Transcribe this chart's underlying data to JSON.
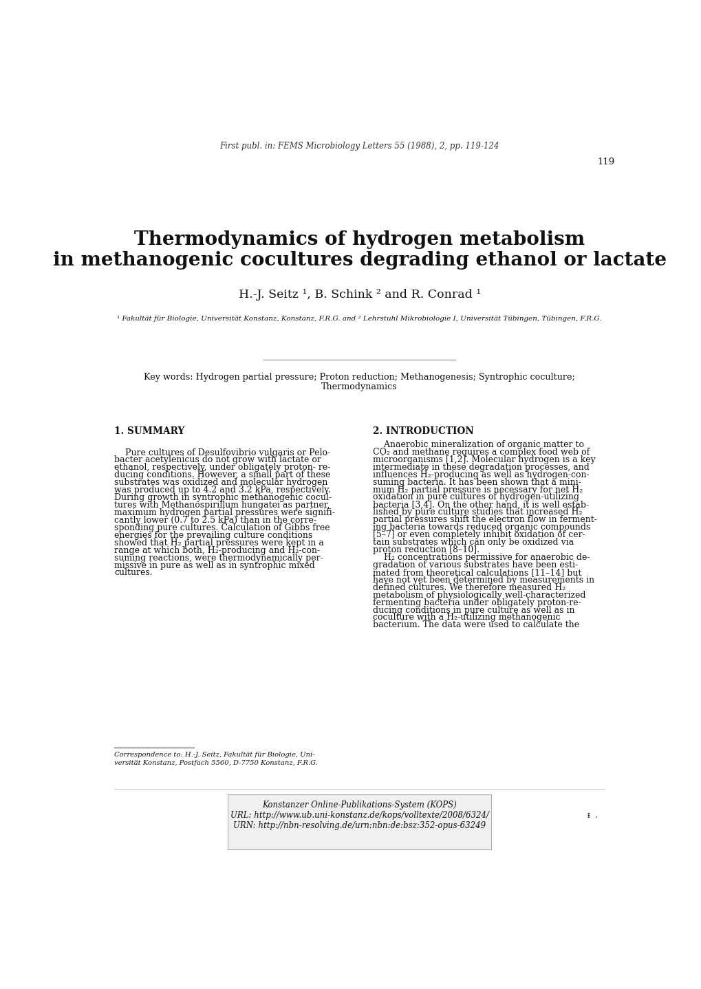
{
  "bg_color": "#ffffff",
  "header_italic": "First publ. in: FEMS Microbiology Letters 55 (1988), 2, pp. 119-124",
  "page_number": "119",
  "title_line1": "Thermodynamics of hydrogen metabolism",
  "title_line2": "in methanogenic cocultures degrading ethanol or lactate",
  "authors": "H.-J. Seitz ¹, B. Schink ² and R. Conrad ¹",
  "affiliation": "¹ Fakultät für Biologie, Universität Konstanz, Konstanz, F.R.G. and ² Lehrstuhl Mikrobiologie I, Universität Tübingen, Tübingen, F.R.G.",
  "keywords_line1": "Key words: Hydrogen partial pressure; Proton reduction; Methanogenesis; Syntrophic coculture;",
  "keywords_line2": "Thermodynamics",
  "section1_title": "1. SUMMARY",
  "section2_title": "2. INTRODUCTION",
  "summary_lines": [
    "    Pure cultures of Desulfovibrio vulgaris or Pelo-",
    "bacter acetylenicus do not grow with lactate or",
    "ethanol, respectively, under obligately proton- re-",
    "ducing conditions. However, a small part of these",
    "substrates was oxidized and molecular hydrogen",
    "was produced up to 4.2 and 3.2 kPa, respectively.",
    "During growth in syntrophic methanogenic cocul-",
    "tures with Methanospirillum hungatei as partner,",
    "maximum hydrogen partial pressures were signifi-",
    "cantly lower (0.7 to 2.5 kPa) than in the corre-",
    "sponding pure cultures. Calculation of Gibbs free",
    "energies for the prevailing culture conditions",
    "showed that H₂ partial pressures were kept in a",
    "range at which both, H₂-producing and H₂-con-",
    "suming reactions, were thermodynamically per-",
    "missive in pure as well as in syntrophic mixed",
    "cultures."
  ],
  "intro_lines": [
    "    Anaerobic mineralization of organic matter to",
    "CO₂ and methane requires a complex food web of",
    "microorganisms [1,2]. Molecular hydrogen is a key",
    "intermediate in these degradation processes, and",
    "influences H₂-producing as well as hydrogen-con-",
    "suming bacteria. It has been shown that a mini-",
    "mum H₂ partial pressure is necessary for net H₂",
    "oxidation in pure cultures of hydrogen-utilizing",
    "bacteria [3,4]. On the other hand, it is well estab-",
    "lished by pure culture studies that increased H₂",
    "partial pressures shift the electron flow in ferment-",
    "ing bacteria towards reduced organic compounds",
    "[5–7] or even completely inhibit oxidation of cer-",
    "tain substrates which can only be oxidized via",
    "proton reduction [8–10].",
    "    H₂ concentrations permissive for anaerobic de-",
    "gradation of various substrates have been esti-",
    "mated from theoretical calculations [11–14] but",
    "have not yet been determined by measurements in",
    "defined cultures. We therefore measured H₂",
    "metabolism of physiologically well-characterized",
    "fermenting bacteria under obligately proton-re-",
    "ducing conditions in pure culture as well as in",
    "coculture with a H₂-utilizing methanogenic",
    "bacterium. The data were used to calculate the"
  ],
  "correspondence_line1": "Correspondence to: H.-J. Seitz, Fakultät für Biologie, Uni-",
  "correspondence_line2": "versität Konstanz, Postfach 5560, D-7750 Konstanz, F.R.G.",
  "footer_text1": "Konstanzer Online-Publikations-System (KOPS)",
  "footer_text2": "URL: http://www.ub.uni-konstanz.de/kops/volltexte/2008/6324/",
  "footer_text3": "URN: http://nbn-resolving.de/urn:nbn:de:bsz:352-opus-63249",
  "footer_right_text": "ᵻ  ."
}
